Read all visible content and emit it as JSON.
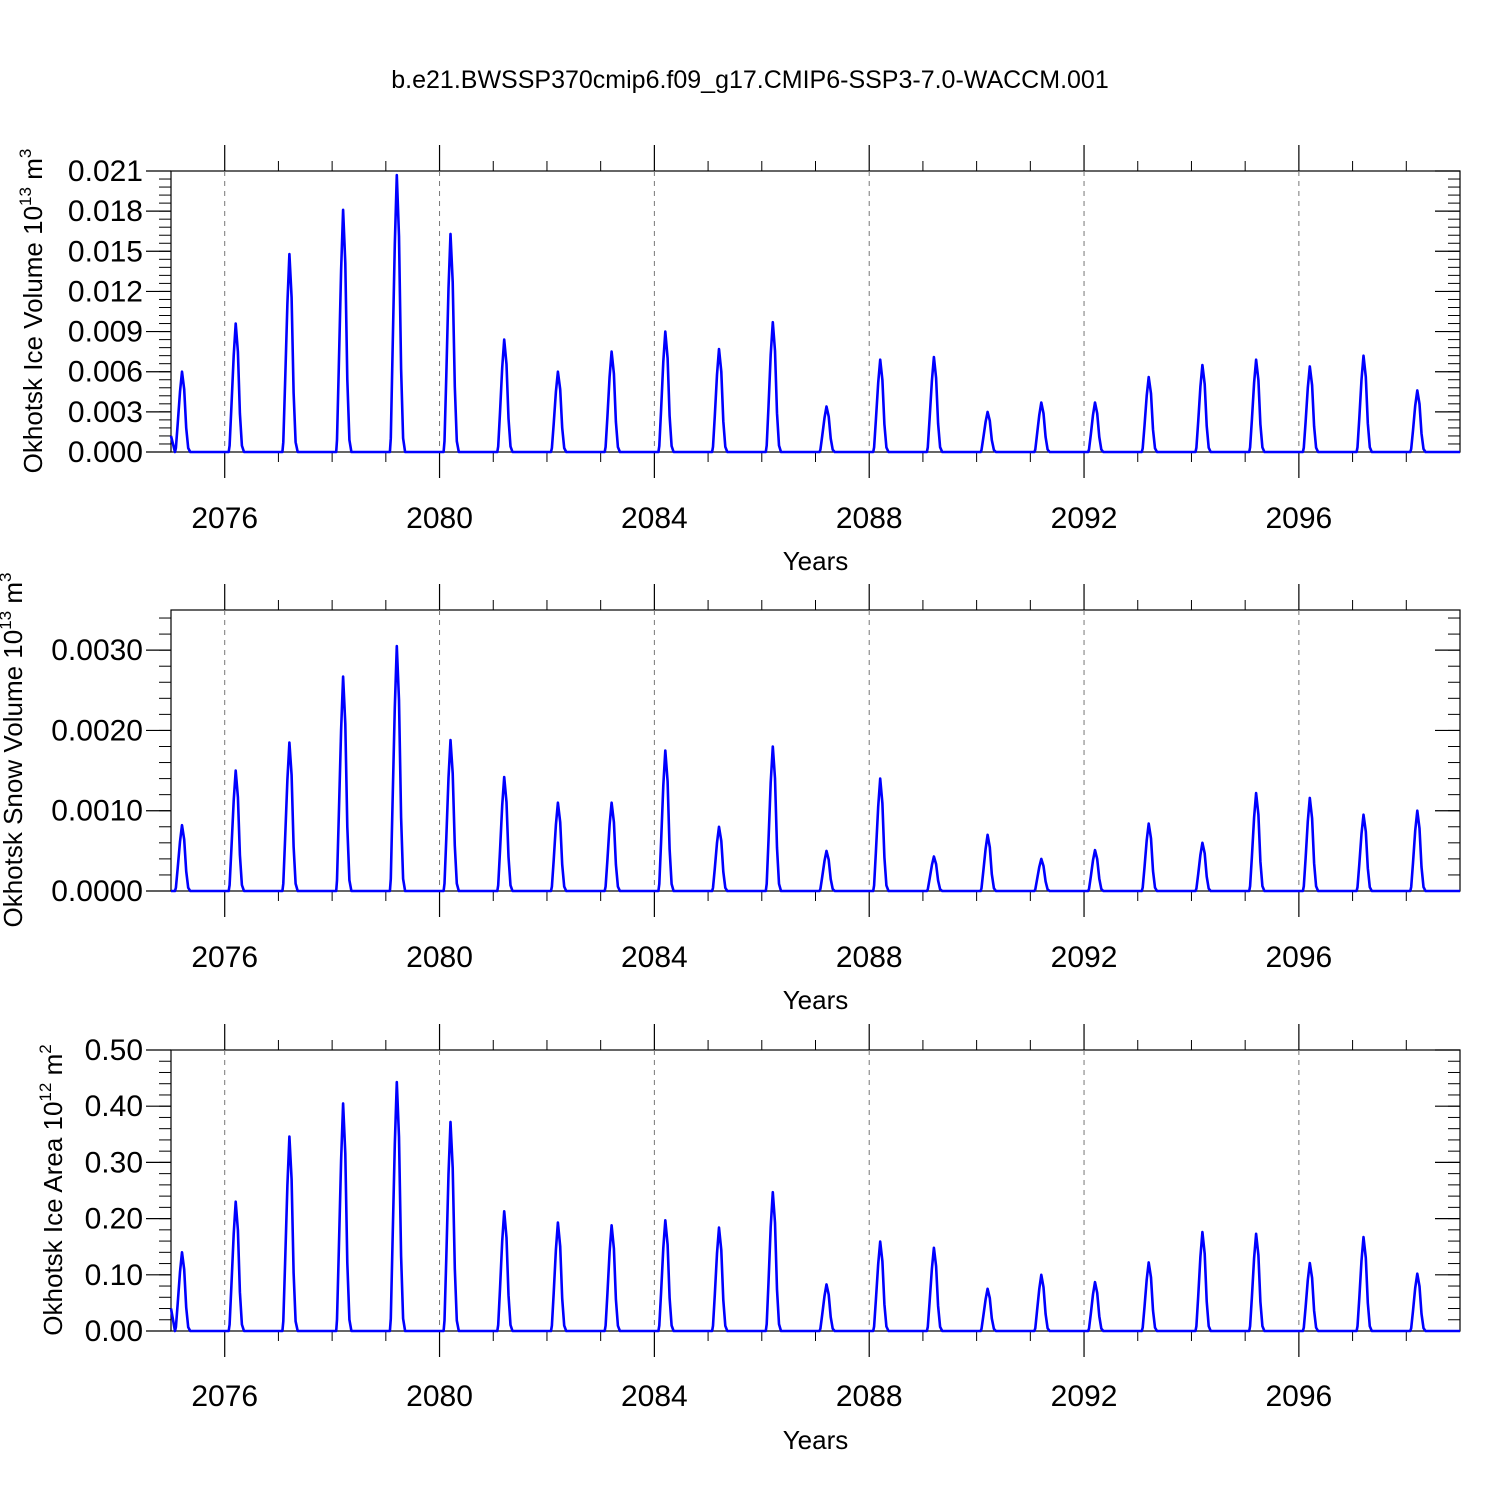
{
  "title": "b.e21.BWSSP370cmip6.f09_g17.CMIP6-SSP3-7.0-WACCM.001",
  "line_color": "#0000ff",
  "chart_data": [
    {
      "type": "line",
      "name": "ice-volume",
      "ylabel": "Okhotsk Ice Volume 10",
      "ylabel_exp": "13",
      "ylabel_unit": "m",
      "ylabel_unit_exp": "3",
      "xlabel": "Years",
      "xlim": [
        2075,
        2099
      ],
      "xticks": [
        2076,
        2080,
        2084,
        2088,
        2092,
        2096
      ],
      "ylim": [
        0,
        0.021
      ],
      "yticks": [
        "0.000",
        "0.003",
        "0.006",
        "0.009",
        "0.012",
        "0.015",
        "0.018",
        "0.021"
      ],
      "ytick_values": [
        0,
        0.003,
        0.006,
        0.009,
        0.012,
        0.015,
        0.018,
        0.021
      ],
      "grid": "dashed vertical at x ticks",
      "peaks": [
        0.006,
        0.0096,
        0.0148,
        0.0181,
        0.0207,
        0.0163,
        0.0084,
        0.006,
        0.0075,
        0.009,
        0.0077,
        0.0097,
        0.0034,
        0.0069,
        0.0071,
        0.003,
        0.0037,
        0.0037,
        0.0056,
        0.0065,
        0.0069,
        0.0064,
        0.0072,
        0.0046
      ],
      "start_value": 0.0012
    },
    {
      "type": "line",
      "name": "snow-volume",
      "ylabel": "Okhotsk Snow Volume 10",
      "ylabel_exp": "13",
      "ylabel_unit": "m",
      "ylabel_unit_exp": "3",
      "xlabel": "Years",
      "xlim": [
        2075,
        2099
      ],
      "xticks": [
        2076,
        2080,
        2084,
        2088,
        2092,
        2096
      ],
      "ylim": [
        0,
        0.0035
      ],
      "yticks": [
        "0.0000",
        "0.0010",
        "0.0020",
        "0.0030"
      ],
      "ytick_values": [
        0,
        0.001,
        0.002,
        0.003
      ],
      "grid": "dashed vertical at x ticks",
      "peaks": [
        0.00082,
        0.0015,
        0.00185,
        0.00267,
        0.00305,
        0.00188,
        0.00142,
        0.0011,
        0.0011,
        0.00175,
        0.0008,
        0.0018,
        0.0005,
        0.0014,
        0.00043,
        0.0007,
        0.0004,
        0.00051,
        0.00084,
        0.0006,
        0.00122,
        0.00116,
        0.00095,
        0.001
      ],
      "start_value": 0.0
    },
    {
      "type": "line",
      "name": "ice-area",
      "ylabel": "Okhotsk Ice Area 10",
      "ylabel_exp": "12",
      "ylabel_unit": "m",
      "ylabel_unit_exp": "2",
      "xlabel": "Years",
      "xlim": [
        2075,
        2099
      ],
      "xticks": [
        2076,
        2080,
        2084,
        2088,
        2092,
        2096
      ],
      "ylim": [
        0,
        0.5
      ],
      "yticks": [
        "0.00",
        "0.10",
        "0.20",
        "0.30",
        "0.40",
        "0.50"
      ],
      "ytick_values": [
        0,
        0.1,
        0.2,
        0.3,
        0.4,
        0.5
      ],
      "grid": "dashed vertical at x ticks",
      "peaks": [
        0.14,
        0.23,
        0.346,
        0.405,
        0.443,
        0.372,
        0.213,
        0.193,
        0.188,
        0.197,
        0.184,
        0.247,
        0.083,
        0.159,
        0.148,
        0.075,
        0.1,
        0.087,
        0.122,
        0.176,
        0.173,
        0.121,
        0.167,
        0.102
      ],
      "start_value": 0.04
    }
  ]
}
